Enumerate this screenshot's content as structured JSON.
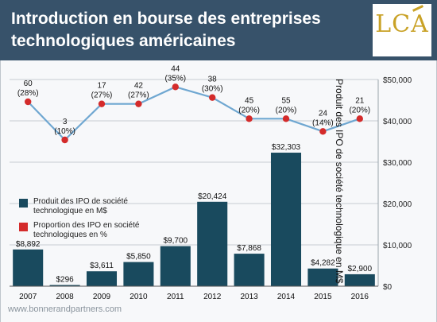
{
  "header": {
    "title_line1": "Introduction en bourse des entreprises",
    "title_line2": "technologiques américaines",
    "logo_text": "LCA"
  },
  "footer": {
    "source": "www.bonnerandpartners.com"
  },
  "colors": {
    "header_bg": "#37526a",
    "bar": "#194a5e",
    "line": "#6fa7d1",
    "marker": "#d42b2b",
    "logo": "#c9a227"
  },
  "chart_data": {
    "type": "bar",
    "title": "Introduction en bourse des entreprises technologiques américaines",
    "ylabel": "Produit des IPO de société technologique en M$",
    "categories": [
      "2007",
      "2008",
      "2009",
      "2010",
      "2011",
      "2012",
      "2013",
      "2014",
      "2015",
      "2016"
    ],
    "ylim": [
      0,
      50000
    ],
    "y_ticks": [
      0,
      10000,
      20000,
      30000,
      40000,
      50000
    ],
    "y_tick_labels": [
      "$0",
      "$10,000",
      "$20,000",
      "$30,000",
      "$40,000",
      "$50,000"
    ],
    "series": [
      {
        "name": "Produit des IPO de société technologique en M$",
        "type": "bar",
        "values": [
          8892,
          296,
          3611,
          5850,
          9700,
          20424,
          7868,
          32303,
          4282,
          2900
        ],
        "labels": [
          "$8,892",
          "$296",
          "$3,611",
          "$5,850",
          "$9,700",
          "$20,424",
          "$7,868",
          "$32,303",
          "$4,282",
          "$2,900"
        ]
      },
      {
        "name": "Proportion des IPO en société technologiques en %",
        "type": "line",
        "values": [
          28,
          10,
          27,
          27,
          35,
          30,
          20,
          20,
          14,
          20
        ],
        "counts": [
          "60",
          "3",
          "17",
          "42",
          "44",
          "38",
          "45",
          "55",
          "24",
          "21"
        ],
        "pct_labels": [
          "(28%)",
          "(10%)",
          "(27%)",
          "(27%)",
          "(35%)",
          "(30%)",
          "(20%)",
          "(20%)",
          "(14%)",
          "(20%)"
        ]
      }
    ],
    "legend": {
      "position": "left",
      "items": [
        "Produit des IPO de société technologique en M$",
        "Proportion des IPO en société technologiques en %"
      ]
    }
  }
}
